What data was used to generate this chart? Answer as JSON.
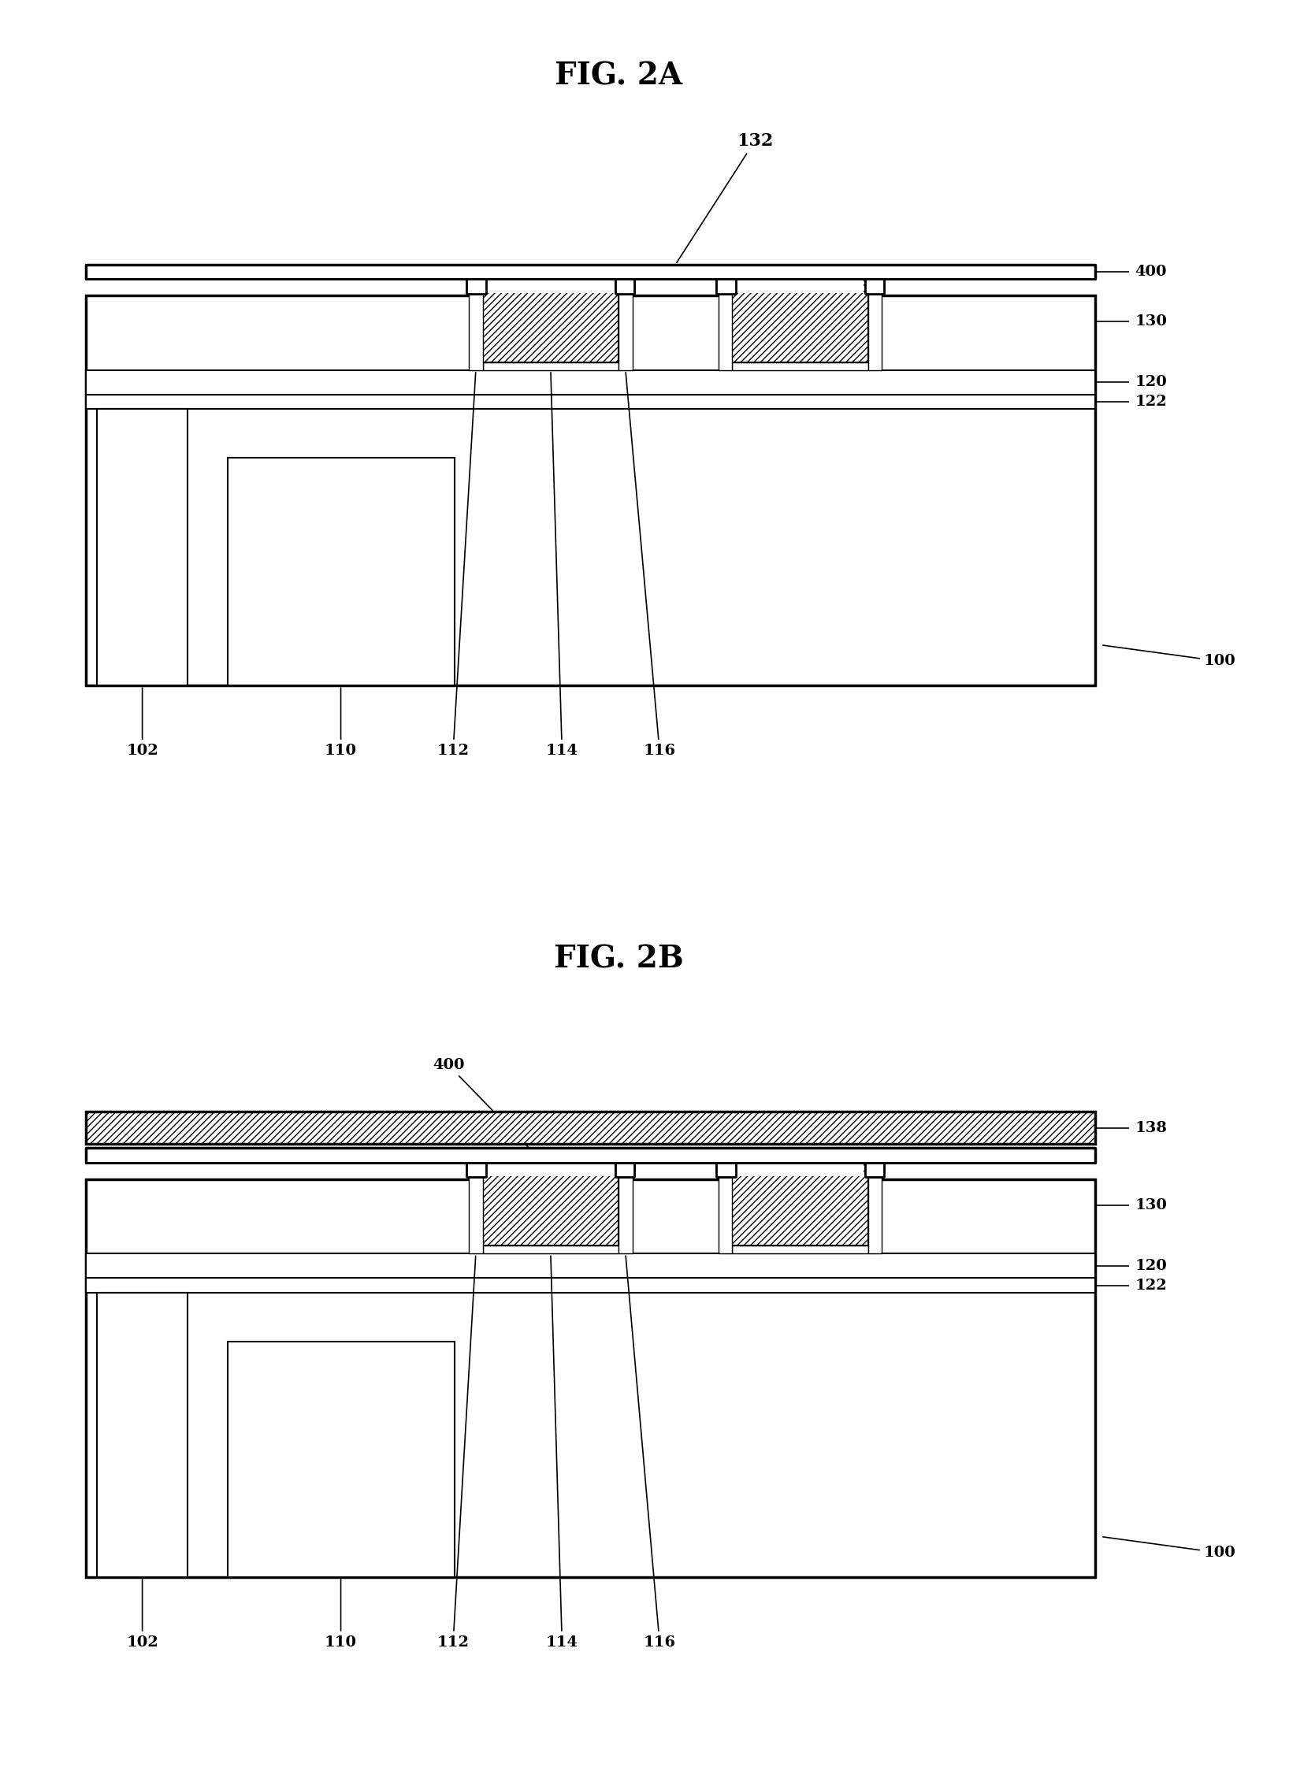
{
  "title_2A": "FIG. 2A",
  "title_2B": "FIG. 2B",
  "fig_width": 16.36,
  "fig_height": 22.43,
  "dpi": 100
}
